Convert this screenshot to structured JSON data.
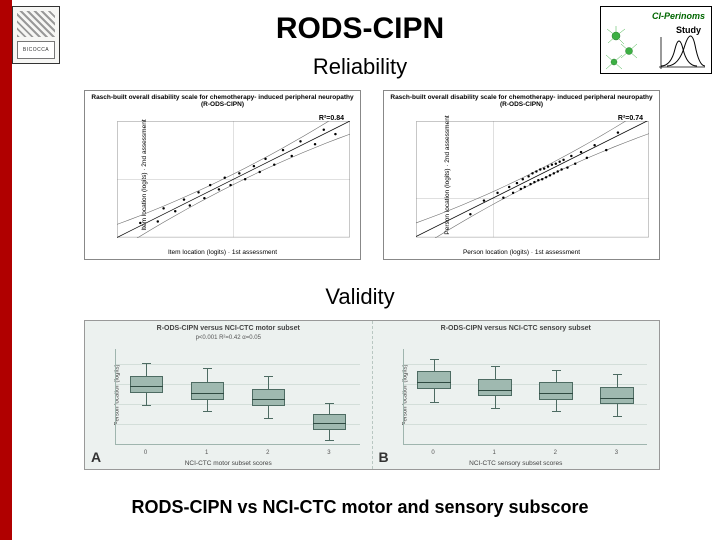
{
  "corner_logo_text": "BICOCCA",
  "badge": {
    "title": "CI-Perinoms",
    "subtitle": "Study"
  },
  "title": "RODS-CIPN",
  "subtitle_reliability": "Reliability",
  "subtitle_validity": "Validity",
  "caption": "RODS-CIPN vs NCI-CTC motor and sensory subscore",
  "colors": {
    "accent_red": "#b00000",
    "badge_title": "#006600",
    "neuron": "#3cb043",
    "scatter_point": "#000000",
    "scatter_line": "#000000",
    "scatter_ci": "#666666",
    "box_fill": "#9fb9b0",
    "box_border": "#4d6b62",
    "bp_bg": "#ecf1ef",
    "bp_grid": "#d3ded9"
  },
  "scatter": [
    {
      "title": "Rasch-built overall disability scale for chemotherapy-\ninduced peripheral neuropathy (R-ODS-CIPN)",
      "r2": "R²=0.84",
      "ylabel": "Item location (logits)",
      "ylabel2": "2nd assessment",
      "xlabel": "Item location (logits)",
      "xlabel2": "1st assessment",
      "xlim": [
        -4,
        4
      ],
      "ylim": [
        -4,
        4
      ],
      "points": [
        [
          -3.2,
          -3.0
        ],
        [
          -2.6,
          -2.9
        ],
        [
          -2.4,
          -2.0
        ],
        [
          -2.0,
          -2.2
        ],
        [
          -1.7,
          -1.4
        ],
        [
          -1.5,
          -1.8
        ],
        [
          -1.2,
          -0.9
        ],
        [
          -1.0,
          -1.3
        ],
        [
          -0.8,
          -0.4
        ],
        [
          -0.5,
          -0.7
        ],
        [
          -0.3,
          0.1
        ],
        [
          -0.1,
          -0.4
        ],
        [
          0.2,
          0.4
        ],
        [
          0.4,
          0.0
        ],
        [
          0.7,
          0.9
        ],
        [
          0.9,
          0.5
        ],
        [
          1.1,
          1.4
        ],
        [
          1.4,
          1.0
        ],
        [
          1.7,
          2.0
        ],
        [
          2.0,
          1.6
        ],
        [
          2.3,
          2.6
        ],
        [
          2.8,
          2.4
        ],
        [
          3.1,
          3.4
        ],
        [
          3.5,
          3.1
        ]
      ],
      "fit": {
        "slope": 1.0,
        "intercept": 0.0,
        "ci_spread": 0.9
      }
    },
    {
      "title": "Rasch-built overall disability scale for chemotherapy-\ninduced peripheral neuropathy (R-ODS-CIPN)",
      "r2": "R²=0.74",
      "ylabel": "Person location (logits)",
      "ylabel2": "2nd assessment",
      "xlabel": "Person location (logits)",
      "xlabel2": "1st assessment",
      "xlim": [
        -4,
        8
      ],
      "ylim": [
        -4,
        8
      ],
      "points": [
        [
          -1.2,
          -1.6
        ],
        [
          -0.5,
          -0.2
        ],
        [
          0.2,
          0.6
        ],
        [
          0.5,
          0.1
        ],
        [
          0.8,
          1.2
        ],
        [
          1.0,
          0.6
        ],
        [
          1.2,
          1.6
        ],
        [
          1.4,
          1.0
        ],
        [
          1.5,
          2.0
        ],
        [
          1.6,
          1.2
        ],
        [
          1.8,
          2.3
        ],
        [
          1.9,
          1.5
        ],
        [
          2.0,
          2.6
        ],
        [
          2.1,
          1.7
        ],
        [
          2.2,
          2.8
        ],
        [
          2.3,
          1.9
        ],
        [
          2.4,
          3.0
        ],
        [
          2.5,
          2.0
        ],
        [
          2.6,
          3.1
        ],
        [
          2.7,
          2.2
        ],
        [
          2.8,
          3.3
        ],
        [
          2.9,
          2.4
        ],
        [
          3.0,
          3.5
        ],
        [
          3.1,
          2.6
        ],
        [
          3.2,
          3.6
        ],
        [
          3.3,
          2.8
        ],
        [
          3.4,
          3.8
        ],
        [
          3.5,
          3.0
        ],
        [
          3.6,
          4.0
        ],
        [
          3.8,
          3.2
        ],
        [
          4.0,
          4.4
        ],
        [
          4.2,
          3.6
        ],
        [
          4.5,
          4.8
        ],
        [
          4.8,
          4.2
        ],
        [
          5.2,
          5.5
        ],
        [
          5.8,
          5.0
        ],
        [
          6.4,
          6.8
        ]
      ],
      "fit": {
        "slope": 1.0,
        "intercept": 0.1,
        "ci_spread": 1.4
      }
    }
  ],
  "boxplots": [
    {
      "letter": "A",
      "title": "R-ODS-CIPN versus NCI-CTC motor subset",
      "ptext": "p<0.001\nR²=0.42\nα=0.05",
      "ylabel": "Person location (logits)",
      "xlabel": "NCI-CTC motor subset scores",
      "xticks": [
        "0",
        "1",
        "2",
        "3"
      ],
      "ylim": [
        -4,
        8
      ],
      "boxes": [
        {
          "q1": 2.4,
          "med": 3.4,
          "q3": 4.6,
          "lo": 0.8,
          "hi": 6.2
        },
        {
          "q1": 1.6,
          "med": 2.6,
          "q3": 3.8,
          "lo": 0.0,
          "hi": 5.6
        },
        {
          "q1": 0.8,
          "med": 1.8,
          "q3": 3.0,
          "lo": -0.8,
          "hi": 4.6
        },
        {
          "q1": -2.2,
          "med": -1.2,
          "q3": -0.2,
          "lo": -3.6,
          "hi": 1.2
        }
      ]
    },
    {
      "letter": "B",
      "title": "R-ODS-CIPN versus NCI-CTC sensory subset",
      "ptext": "   ",
      "ylabel": "Person location (logits)",
      "xlabel": "NCI-CTC sensory subset scores",
      "xticks": [
        "0",
        "1",
        "2",
        "3"
      ],
      "ylim": [
        -4,
        8
      ],
      "boxes": [
        {
          "q1": 3.0,
          "med": 4.0,
          "q3": 5.2,
          "lo": 1.2,
          "hi": 6.8
        },
        {
          "q1": 2.0,
          "med": 3.0,
          "q3": 4.2,
          "lo": 0.4,
          "hi": 5.8
        },
        {
          "q1": 1.6,
          "med": 2.6,
          "q3": 3.8,
          "lo": 0.0,
          "hi": 5.4
        },
        {
          "q1": 1.0,
          "med": 2.0,
          "q3": 3.2,
          "lo": -0.6,
          "hi": 4.8
        }
      ]
    }
  ]
}
